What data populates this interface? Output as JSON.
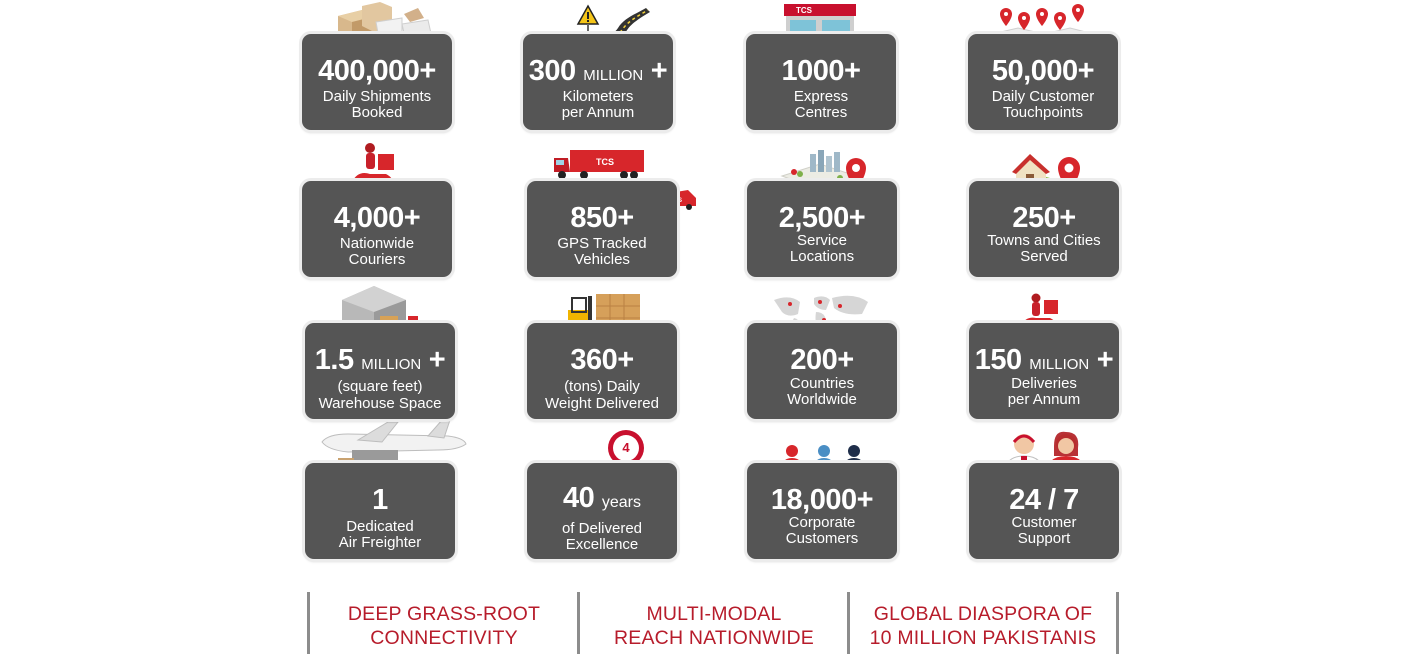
{
  "stats": [
    {
      "number": "400,000+",
      "unit": "",
      "plus": "",
      "line1": "Daily Shipments",
      "line2": "Booked",
      "icon": "boxes-icon"
    },
    {
      "number": "300",
      "unit": "MILLION",
      "plus": "+",
      "line1": "Kilometers",
      "line2": "per Annum",
      "icon": "road-icon"
    },
    {
      "number": "1000+",
      "unit": "",
      "plus": "",
      "line1": "Express",
      "line2": "Centres",
      "icon": "storefront-icon"
    },
    {
      "number": "50,000+",
      "unit": "",
      "plus": "",
      "line1": "Daily Customer",
      "line2": "Touchpoints",
      "icon": "map-pins-icon"
    },
    {
      "number": "4,000+",
      "unit": "",
      "plus": "",
      "line1": "Nationwide",
      "line2": "Couriers",
      "icon": "scooter-courier-icon"
    },
    {
      "number": "850+",
      "unit": "",
      "plus": "",
      "line1": "GPS Tracked",
      "line2": "Vehicles",
      "icon": "truck-icon"
    },
    {
      "number": "2,500+",
      "unit": "",
      "plus": "",
      "line1": "Service",
      "line2": "Locations",
      "icon": "city-map-icon"
    },
    {
      "number": "250+",
      "unit": "",
      "plus": "",
      "line1": "Towns and Cities",
      "line2": "Served",
      "icon": "house-pin-icon"
    },
    {
      "number": "1.5",
      "unit": "MILLION",
      "plus": "+",
      "line1": "(square feet)",
      "line2": "Warehouse Space",
      "icon": "warehouse-icon"
    },
    {
      "number": "360+",
      "unit": "",
      "plus": "",
      "line1": "(tons) Daily",
      "line2": "Weight Delivered",
      "icon": "forklift-icon"
    },
    {
      "number": "200+",
      "unit": "",
      "plus": "",
      "line1": "Countries",
      "line2": "Worldwide",
      "icon": "world-map-icon"
    },
    {
      "number": "150",
      "unit": "MILLION",
      "plus": "+",
      "line1": "Deliveries",
      "line2": "per Annum",
      "icon": "scooter-icon"
    },
    {
      "number": "1",
      "unit": "",
      "plus": "",
      "line1": "Dedicated",
      "line2": "Air Freighter",
      "icon": "airplane-icon"
    },
    {
      "number": "40",
      "unit": "years",
      "plus": "",
      "line1": "of Delivered",
      "line2": "Excellence",
      "icon": "anniversary-badge-icon",
      "badge_text": "4"
    },
    {
      "number": "18,000+",
      "unit": "",
      "plus": "",
      "line1": "Corporate",
      "line2": "Customers",
      "icon": "business-people-icon"
    },
    {
      "number": "24 / 7",
      "unit": "",
      "plus": "",
      "line1": "Customer",
      "line2": "Support",
      "icon": "support-agents-icon"
    }
  ],
  "footer": [
    {
      "line1": "DEEP GRASS-ROOT",
      "line2": "CONNECTIVITY"
    },
    {
      "line1": "MULTI-MODAL",
      "line2": "REACH NATIONWIDE"
    },
    {
      "line1": "GLOBAL DIASPORA OF",
      "line2": "10 MILLION PAKISTANIS"
    }
  ],
  "colors": {
    "card": "#555555",
    "brand_red": "#b71c2b",
    "divider": "#8c8c8c"
  }
}
